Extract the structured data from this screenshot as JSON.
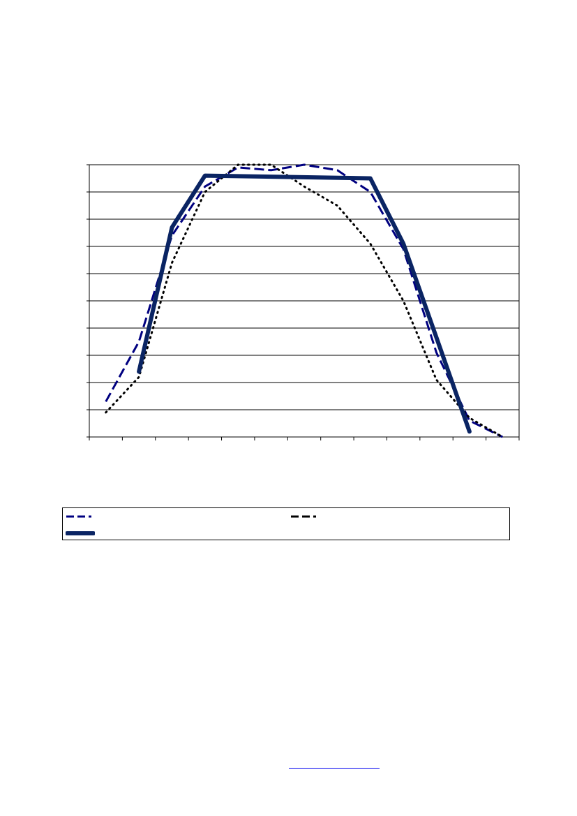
{
  "chart_data": {
    "type": "line",
    "x": [
      1,
      2,
      3,
      4,
      5,
      6,
      7,
      8,
      9,
      10,
      11,
      12,
      13
    ],
    "xlim": [
      0.5,
      13.5
    ],
    "ylim": [
      0,
      10
    ],
    "grid": true,
    "legend_position": "bottom",
    "colors": {
      "series_1": "#000080",
      "series_2": "#000000",
      "series_3": "#0a2463"
    },
    "series": [
      {
        "style": "dashed",
        "x": [
          1,
          2,
          3,
          4,
          5,
          6,
          7,
          8,
          9,
          10,
          11,
          12,
          13
        ],
        "values": [
          1.3,
          3.5,
          7.4,
          9.2,
          9.9,
          9.8,
          10.0,
          9.8,
          9.0,
          6.9,
          3.1,
          0.6,
          0.0
        ]
      },
      {
        "style": "dotted",
        "x": [
          1,
          2,
          3,
          4,
          5,
          6,
          7,
          8,
          9,
          10,
          11,
          12,
          13
        ],
        "values": [
          0.9,
          2.2,
          6.4,
          9.0,
          10.0,
          10.0,
          9.2,
          8.5,
          7.1,
          5.0,
          2.1,
          0.7,
          0.0
        ]
      },
      {
        "style": "solid-thick",
        "x": [
          2,
          3,
          4,
          9,
          10,
          12
        ],
        "values": [
          2.4,
          7.7,
          9.6,
          9.5,
          7.1,
          0.2
        ]
      }
    ]
  },
  "footer": {
    "link_text": ""
  }
}
